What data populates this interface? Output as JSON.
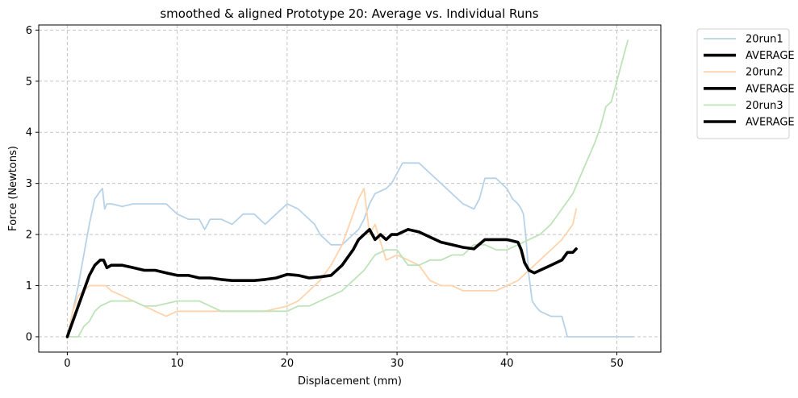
{
  "chart_data": {
    "type": "line",
    "title": "smoothed & aligned Prototype 20: Average vs. Individual Runs",
    "xlabel": "Displacement (mm)",
    "ylabel": "Force (Newtons)",
    "xlim": [
      -2.6,
      54.0
    ],
    "ylim": [
      -0.3,
      6.1
    ],
    "xticks": [
      0,
      10,
      20,
      30,
      40,
      50
    ],
    "yticks": [
      0,
      1,
      2,
      3,
      4,
      5,
      6
    ],
    "grid": true,
    "legend_position": "outside-top-right",
    "legend": [
      "20run1",
      "AVERAGE",
      "20run2",
      "AVERAGE",
      "20run3",
      "AVERAGE"
    ],
    "colors": {
      "20run1": "#b7d2e8",
      "20run2": "#ffd3ab",
      "20run3": "#bde3b8",
      "AVERAGE": "#000000"
    },
    "series": [
      {
        "name": "20run1",
        "x": [
          0,
          0.5,
          1.0,
          1.5,
          2.0,
          2.5,
          3.0,
          3.2,
          3.4,
          3.6,
          4.0,
          5.0,
          6.0,
          6.5,
          7.0,
          8.0,
          9.0,
          9.5,
          10.0,
          11.0,
          12.0,
          12.5,
          13.0,
          14.0,
          15.0,
          16.0,
          17.0,
          18.0,
          19.0,
          20.0,
          21.0,
          22.0,
          22.5,
          23.0,
          24.0,
          25.0,
          26.0,
          26.5,
          27.0,
          27.5,
          28.0,
          29.0,
          29.5,
          30.0,
          30.5,
          31.0,
          32.0,
          33.0,
          34.0,
          35.0,
          36.0,
          37.0,
          37.5,
          38.0,
          39.0,
          40.0,
          40.5,
          41.0,
          41.3,
          41.5,
          41.7,
          42.0,
          42.3,
          42.6,
          43.0,
          44.0,
          45.0,
          45.5,
          46.0,
          48.0,
          50.0,
          51.5
        ],
        "y": [
          0,
          0.5,
          1.0,
          1.6,
          2.2,
          2.7,
          2.85,
          2.9,
          2.5,
          2.6,
          2.6,
          2.55,
          2.6,
          2.6,
          2.6,
          2.6,
          2.6,
          2.5,
          2.4,
          2.3,
          2.3,
          2.1,
          2.3,
          2.3,
          2.2,
          2.4,
          2.4,
          2.2,
          2.4,
          2.6,
          2.5,
          2.3,
          2.2,
          2.0,
          1.8,
          1.8,
          2.0,
          2.1,
          2.3,
          2.6,
          2.8,
          2.9,
          3.0,
          3.2,
          3.4,
          3.4,
          3.4,
          3.2,
          3.0,
          2.8,
          2.6,
          2.5,
          2.7,
          3.1,
          3.1,
          2.9,
          2.7,
          2.6,
          2.5,
          2.4,
          2.0,
          1.2,
          0.7,
          0.6,
          0.5,
          0.4,
          0.4,
          0.0,
          0.0,
          0.0,
          0.0,
          0.0
        ]
      },
      {
        "name": "20run2",
        "x": [
          0,
          0.5,
          1.0,
          1.5,
          2.0,
          2.5,
          3.0,
          3.5,
          4.0,
          5.0,
          6.0,
          7.0,
          8.0,
          9.0,
          10.0,
          12.0,
          14.0,
          16.0,
          18.0,
          20.0,
          21.0,
          22.0,
          23.0,
          24.0,
          25.0,
          25.5,
          26.0,
          26.5,
          27.0,
          27.5,
          28.0,
          29.0,
          30.0,
          31.0,
          32.0,
          33.0,
          34.0,
          35.0,
          36.0,
          37.0,
          38.0,
          39.0,
          40.0,
          41.0,
          42.0,
          43.0,
          44.0,
          45.0,
          46.0,
          46.3
        ],
        "y": [
          0,
          0.5,
          0.8,
          0.9,
          1.0,
          1.0,
          1.0,
          1.0,
          0.9,
          0.8,
          0.7,
          0.6,
          0.5,
          0.4,
          0.5,
          0.5,
          0.5,
          0.5,
          0.5,
          0.6,
          0.7,
          0.9,
          1.1,
          1.4,
          1.8,
          2.1,
          2.4,
          2.7,
          2.9,
          2.0,
          2.2,
          1.5,
          1.6,
          1.5,
          1.4,
          1.1,
          1.0,
          1.0,
          0.9,
          0.9,
          0.9,
          0.9,
          1.0,
          1.1,
          1.3,
          1.5,
          1.7,
          1.9,
          2.2,
          2.5
        ]
      },
      {
        "name": "20run3",
        "x": [
          0,
          1.0,
          1.5,
          2.0,
          2.5,
          3.0,
          4.0,
          5.0,
          6.0,
          7.0,
          8.0,
          10.0,
          12.0,
          13.0,
          14.0,
          16.0,
          18.0,
          20.0,
          21.0,
          22.0,
          23.0,
          24.0,
          25.0,
          26.0,
          27.0,
          28.0,
          29.0,
          30.0,
          31.0,
          32.0,
          33.0,
          34.0,
          35.0,
          36.0,
          37.0,
          38.0,
          39.0,
          40.0,
          41.0,
          42.0,
          43.0,
          44.0,
          45.0,
          46.0,
          47.0,
          48.0,
          48.5,
          49.0,
          49.5,
          50.0,
          50.5,
          51.0
        ],
        "y": [
          0,
          0.0,
          0.2,
          0.3,
          0.5,
          0.6,
          0.7,
          0.7,
          0.7,
          0.6,
          0.6,
          0.7,
          0.7,
          0.6,
          0.5,
          0.5,
          0.5,
          0.5,
          0.6,
          0.6,
          0.7,
          0.8,
          0.9,
          1.1,
          1.3,
          1.6,
          1.7,
          1.7,
          1.4,
          1.4,
          1.5,
          1.5,
          1.6,
          1.6,
          1.8,
          1.8,
          1.7,
          1.7,
          1.8,
          1.9,
          2.0,
          2.2,
          2.5,
          2.8,
          3.3,
          3.8,
          4.1,
          4.5,
          4.6,
          5.0,
          5.4,
          5.8
        ]
      },
      {
        "name": "AVERAGE",
        "x": [
          0,
          0.5,
          1.0,
          1.5,
          2.0,
          2.5,
          3.0,
          3.3,
          3.6,
          4.0,
          5.0,
          6.0,
          7.0,
          8.0,
          9.0,
          10.0,
          11.0,
          12.0,
          13.0,
          14.0,
          15.0,
          16.0,
          17.0,
          18.0,
          19.0,
          20.0,
          21.0,
          22.0,
          23.0,
          24.0,
          25.0,
          26.0,
          26.5,
          27.0,
          27.5,
          28.0,
          28.5,
          29.0,
          29.5,
          30.0,
          31.0,
          32.0,
          33.0,
          34.0,
          35.0,
          36.0,
          37.0,
          38.0,
          39.0,
          40.0,
          41.0,
          41.3,
          41.6,
          42.0,
          42.5,
          43.0,
          44.0,
          45.0,
          45.5,
          46.0,
          46.3
        ],
        "y": [
          0,
          0.3,
          0.6,
          0.9,
          1.2,
          1.4,
          1.5,
          1.5,
          1.35,
          1.4,
          1.4,
          1.35,
          1.3,
          1.3,
          1.25,
          1.2,
          1.2,
          1.15,
          1.15,
          1.12,
          1.1,
          1.1,
          1.1,
          1.12,
          1.15,
          1.22,
          1.2,
          1.15,
          1.17,
          1.2,
          1.4,
          1.7,
          1.9,
          2.0,
          2.1,
          1.9,
          2.0,
          1.9,
          2.0,
          2.0,
          2.1,
          2.05,
          1.95,
          1.85,
          1.8,
          1.75,
          1.72,
          1.9,
          1.9,
          1.9,
          1.85,
          1.7,
          1.45,
          1.3,
          1.25,
          1.3,
          1.4,
          1.5,
          1.65,
          1.65,
          1.72
        ]
      }
    ]
  }
}
